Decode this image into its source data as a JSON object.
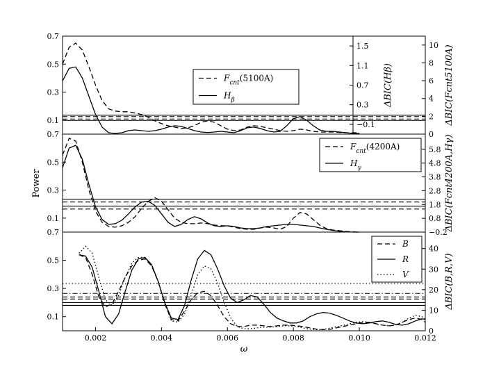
{
  "chart_data": {
    "type": "line",
    "xlabel": "ω",
    "ylabel": "Power",
    "xlim": [
      0.001,
      0.012
    ],
    "x_ticks": [
      "0.002",
      "0.004",
      "0.006",
      "0.008",
      "0.010",
      "0.012"
    ],
    "power_ticks": [
      "0.1",
      "0.3",
      "0.5",
      "0.7"
    ],
    "panels": [
      {
        "id": "top",
        "ylim": [
          0,
          0.7
        ],
        "legend": {
          "placement": "center",
          "entries": [
            {
              "label": "Fcnt(5100A)",
              "style": "dashed"
            },
            {
              "label": "Hβ",
              "style": "solid"
            }
          ]
        },
        "right_axes": [
          {
            "label": "ΔBIC(Hβ)",
            "ylim": [
              -0.3,
              1.7
            ],
            "ticks": [
              "−0.1",
              "0.3",
              "0.7",
              "1.1",
              "1.5"
            ]
          },
          {
            "label": "ΔBIC(Fcnt5100A)",
            "ylim": [
              0,
              11
            ],
            "ticks": [
              "0",
              "2",
              "4",
              "6",
              "8",
              "10"
            ]
          }
        ],
        "thresholds": [
          {
            "y": 0.135,
            "style": "solid"
          },
          {
            "y": 0.125,
            "style": "dashed"
          },
          {
            "y": 0.108,
            "style": "dashed"
          },
          {
            "y": 0.098,
            "style": "solid"
          }
        ],
        "series": [
          {
            "name": "Fcnt(5100A)",
            "style": "dashed",
            "x": [
              0.001,
              0.0012,
              0.0014,
              0.0016,
              0.0018,
              0.002,
              0.0022,
              0.0024,
              0.0026,
              0.0028,
              0.003,
              0.0032,
              0.0034,
              0.0036,
              0.0038,
              0.004,
              0.0042,
              0.0044,
              0.0046,
              0.0048,
              0.005,
              0.0052,
              0.0054,
              0.0056,
              0.0058,
              0.006,
              0.0062,
              0.0064,
              0.0066,
              0.0068,
              0.007,
              0.0072,
              0.0074,
              0.0076,
              0.0078,
              0.008,
              0.0082,
              0.0084,
              0.0086,
              0.0088,
              0.009,
              0.0092,
              0.0094,
              0.0096,
              0.0098,
              0.01
            ],
            "y": [
              0.5,
              0.62,
              0.65,
              0.6,
              0.48,
              0.35,
              0.24,
              0.18,
              0.165,
              0.16,
              0.16,
              0.15,
              0.14,
              0.12,
              0.095,
              0.075,
              0.06,
              0.05,
              0.04,
              0.045,
              0.06,
              0.085,
              0.095,
              0.085,
              0.06,
              0.035,
              0.025,
              0.03,
              0.05,
              0.06,
              0.055,
              0.045,
              0.035,
              0.025,
              0.02,
              0.025,
              0.035,
              0.03,
              0.02,
              0.015,
              0.015,
              0.015,
              0.012,
              0.01,
              0.01,
              0.01
            ]
          },
          {
            "name": "Hβ",
            "style": "solid",
            "x": [
              0.001,
              0.0012,
              0.0014,
              0.0016,
              0.0018,
              0.002,
              0.0022,
              0.0024,
              0.0026,
              0.0028,
              0.003,
              0.0032,
              0.0034,
              0.0036,
              0.0038,
              0.004,
              0.0042,
              0.0044,
              0.0046,
              0.0048,
              0.005,
              0.0052,
              0.0054,
              0.0056,
              0.0058,
              0.006,
              0.0062,
              0.0064,
              0.0066,
              0.0068,
              0.007,
              0.0072,
              0.0074,
              0.0076,
              0.0078,
              0.008,
              0.0082,
              0.0084,
              0.0086,
              0.0088,
              0.009,
              0.0092,
              0.0094,
              0.0096,
              0.0098,
              0.01
            ],
            "y": [
              0.38,
              0.47,
              0.48,
              0.4,
              0.27,
              0.14,
              0.05,
              0.01,
              0.005,
              0.01,
              0.025,
              0.03,
              0.025,
              0.02,
              0.025,
              0.035,
              0.05,
              0.06,
              0.055,
              0.04,
              0.025,
              0.015,
              0.012,
              0.015,
              0.02,
              0.015,
              0.01,
              0.025,
              0.045,
              0.05,
              0.04,
              0.025,
              0.015,
              0.02,
              0.06,
              0.11,
              0.125,
              0.1,
              0.06,
              0.03,
              0.02,
              0.02,
              0.015,
              0.01,
              0.005,
              0.005
            ]
          }
        ]
      },
      {
        "id": "middle",
        "ylim": [
          0,
          0.7
        ],
        "legend": {
          "placement": "top-right",
          "entries": [
            {
              "label": "Fcnt(4200A)",
              "style": "dashed"
            },
            {
              "label": "Hγ",
              "style": "solid"
            }
          ]
        },
        "right_axes": [
          {
            "label": "ΔBIC(Fcnt4200A,Hγ)",
            "ylim": [
              -0.2,
              6.9
            ],
            "ticks": [
              "−0.2",
              "0.8",
              "1.8",
              "2.8",
              "3.8",
              "4.8",
              "5.8"
            ]
          }
        ],
        "thresholds": [
          {
            "y": 0.235,
            "style": "solid"
          },
          {
            "y": 0.215,
            "style": "dashed"
          },
          {
            "y": 0.185,
            "style": "solid"
          },
          {
            "y": 0.165,
            "style": "dashed"
          }
        ],
        "series": [
          {
            "name": "Fcnt(4200A)",
            "style": "dashed",
            "x": [
              0.001,
              0.0012,
              0.0014,
              0.0016,
              0.0018,
              0.002,
              0.0022,
              0.0024,
              0.0026,
              0.0028,
              0.003,
              0.0032,
              0.0034,
              0.0036,
              0.0038,
              0.004,
              0.0042,
              0.0044,
              0.0046,
              0.0048,
              0.005,
              0.0052,
              0.0054,
              0.0056,
              0.0058,
              0.006,
              0.0062,
              0.0064,
              0.0066,
              0.0068,
              0.007,
              0.0072,
              0.0074,
              0.0076,
              0.0078,
              0.008,
              0.0082,
              0.0084,
              0.0086,
              0.0088,
              0.009,
              0.0092,
              0.0094,
              0.0096,
              0.0098,
              0.01
            ],
            "y": [
              0.55,
              0.67,
              0.65,
              0.5,
              0.3,
              0.15,
              0.07,
              0.04,
              0.035,
              0.045,
              0.07,
              0.11,
              0.17,
              0.22,
              0.245,
              0.22,
              0.16,
              0.1,
              0.07,
              0.06,
              0.06,
              0.065,
              0.06,
              0.05,
              0.045,
              0.045,
              0.035,
              0.025,
              0.02,
              0.02,
              0.03,
              0.035,
              0.03,
              0.02,
              0.04,
              0.1,
              0.14,
              0.13,
              0.09,
              0.05,
              0.025,
              0.015,
              0.01,
              0.005,
              0.002,
              0.0
            ]
          },
          {
            "name": "Hγ",
            "style": "solid",
            "x": [
              0.001,
              0.0012,
              0.0014,
              0.0016,
              0.0018,
              0.002,
              0.0022,
              0.0024,
              0.0026,
              0.0028,
              0.003,
              0.0032,
              0.0034,
              0.0036,
              0.0038,
              0.004,
              0.0042,
              0.0044,
              0.0046,
              0.0048,
              0.005,
              0.0052,
              0.0054,
              0.0056,
              0.0058,
              0.006,
              0.0062,
              0.0064,
              0.0066,
              0.0068,
              0.007,
              0.0072,
              0.0074,
              0.0076,
              0.0078,
              0.008,
              0.0082,
              0.0084,
              0.0086,
              0.0088,
              0.009,
              0.0092,
              0.0094,
              0.0096,
              0.0098,
              0.01
            ],
            "y": [
              0.46,
              0.6,
              0.62,
              0.52,
              0.34,
              0.18,
              0.09,
              0.055,
              0.06,
              0.085,
              0.13,
              0.18,
              0.215,
              0.22,
              0.19,
              0.13,
              0.07,
              0.04,
              0.055,
              0.09,
              0.11,
              0.095,
              0.065,
              0.045,
              0.04,
              0.045,
              0.04,
              0.03,
              0.025,
              0.025,
              0.03,
              0.04,
              0.045,
              0.05,
              0.055,
              0.055,
              0.05,
              0.045,
              0.04,
              0.03,
              0.02,
              0.012,
              0.006,
              0.002,
              0.0,
              0.0
            ]
          }
        ]
      },
      {
        "id": "bottom",
        "ylim": [
          0,
          0.7
        ],
        "legend": {
          "placement": "top-right",
          "entries": [
            {
              "label": "B",
              "style": "dashed"
            },
            {
              "label": "R",
              "style": "solid"
            },
            {
              "label": "V",
              "style": "dotted"
            }
          ]
        },
        "right_axes": [
          {
            "label": "ΔBIC(B,R,V)",
            "ylim": [
              0,
              48
            ],
            "ticks": [
              "0",
              "10",
              "20",
              "30",
              "40"
            ]
          }
        ],
        "thresholds": [
          {
            "y": 0.335,
            "style": "dotted"
          },
          {
            "y": 0.265,
            "style": "dashdot"
          },
          {
            "y": 0.24,
            "style": "dashed"
          },
          {
            "y": 0.225,
            "style": "dashed"
          },
          {
            "y": 0.2,
            "style": "solid"
          },
          {
            "y": 0.18,
            "style": "solid"
          }
        ],
        "series": [
          {
            "name": "B",
            "style": "dashed",
            "x": [
              0.0015,
              0.0017,
              0.0019,
              0.0021,
              0.0023,
              0.0025,
              0.0027,
              0.0029,
              0.0031,
              0.0033,
              0.0035,
              0.0037,
              0.0039,
              0.0041,
              0.0043,
              0.0045,
              0.0047,
              0.0049,
              0.0051,
              0.0053,
              0.0055,
              0.0057,
              0.0059,
              0.0061,
              0.0063,
              0.0065,
              0.0067,
              0.0069,
              0.0071,
              0.0073,
              0.0075,
              0.0077,
              0.0079,
              0.0081,
              0.0083,
              0.0085,
              0.0087,
              0.0089,
              0.0091,
              0.0093,
              0.0095,
              0.0097,
              0.0099,
              0.0101,
              0.0103,
              0.0105,
              0.0107,
              0.0109,
              0.0111,
              0.0113,
              0.0115,
              0.0117,
              0.0119,
              0.012
            ],
            "y": [
              0.54,
              0.52,
              0.4,
              0.24,
              0.17,
              0.19,
              0.28,
              0.38,
              0.46,
              0.5,
              0.51,
              0.46,
              0.35,
              0.19,
              0.08,
              0.07,
              0.14,
              0.22,
              0.27,
              0.28,
              0.25,
              0.18,
              0.1,
              0.05,
              0.03,
              0.03,
              0.04,
              0.04,
              0.035,
              0.03,
              0.035,
              0.04,
              0.04,
              0.035,
              0.03,
              0.02,
              0.012,
              0.008,
              0.01,
              0.02,
              0.03,
              0.04,
              0.05,
              0.06,
              0.06,
              0.05,
              0.04,
              0.035,
              0.04,
              0.06,
              0.08,
              0.09,
              0.08,
              0.06
            ]
          },
          {
            "name": "R",
            "style": "solid",
            "x": [
              0.0015,
              0.0017,
              0.0019,
              0.0021,
              0.0023,
              0.0025,
              0.0027,
              0.0029,
              0.0031,
              0.0033,
              0.0035,
              0.0037,
              0.0039,
              0.0041,
              0.0043,
              0.0045,
              0.0047,
              0.0049,
              0.0051,
              0.0053,
              0.0055,
              0.0057,
              0.0059,
              0.0061,
              0.0063,
              0.0065,
              0.0067,
              0.0069,
              0.0071,
              0.0073,
              0.0075,
              0.0077,
              0.0079,
              0.0081,
              0.0083,
              0.0085,
              0.0087,
              0.0089,
              0.0091,
              0.0093,
              0.0095,
              0.0097,
              0.0099,
              0.0101,
              0.0103,
              0.0105,
              0.0107,
              0.0109,
              0.0111,
              0.0113,
              0.0115,
              0.0117,
              0.0119,
              0.012
            ],
            "y": [
              0.54,
              0.53,
              0.45,
              0.28,
              0.1,
              0.05,
              0.12,
              0.28,
              0.43,
              0.51,
              0.52,
              0.47,
              0.35,
              0.2,
              0.09,
              0.08,
              0.18,
              0.36,
              0.51,
              0.57,
              0.54,
              0.44,
              0.32,
              0.23,
              0.2,
              0.22,
              0.25,
              0.24,
              0.19,
              0.13,
              0.09,
              0.07,
              0.055,
              0.055,
              0.07,
              0.1,
              0.12,
              0.13,
              0.125,
              0.11,
              0.09,
              0.07,
              0.055,
              0.05,
              0.055,
              0.065,
              0.07,
              0.06,
              0.045,
              0.04,
              0.05,
              0.07,
              0.085,
              0.08
            ]
          },
          {
            "name": "V",
            "style": "dotted",
            "x": [
              0.0015,
              0.0017,
              0.0019,
              0.0021,
              0.0023,
              0.0025,
              0.0027,
              0.0029,
              0.0031,
              0.0033,
              0.0035,
              0.0037,
              0.0039,
              0.0041,
              0.0043,
              0.0045,
              0.0047,
              0.0049,
              0.0051,
              0.0053,
              0.0055,
              0.0057,
              0.0059,
              0.0061,
              0.0063,
              0.0065,
              0.0067,
              0.0069,
              0.0071,
              0.0073,
              0.0075,
              0.0077,
              0.0079,
              0.0081,
              0.0083,
              0.0085,
              0.0087,
              0.0089,
              0.0091,
              0.0093,
              0.0095,
              0.0097,
              0.0099,
              0.0101,
              0.0103,
              0.0105,
              0.0107,
              0.0109,
              0.0111,
              0.0113,
              0.0115,
              0.0117,
              0.0119,
              0.012
            ],
            "y": [
              0.55,
              0.6,
              0.55,
              0.38,
              0.22,
              0.18,
              0.25,
              0.38,
              0.48,
              0.52,
              0.52,
              0.47,
              0.35,
              0.2,
              0.07,
              0.06,
              0.12,
              0.25,
              0.4,
              0.46,
              0.44,
              0.34,
              0.2,
              0.09,
              0.03,
              0.015,
              0.015,
              0.02,
              0.025,
              0.025,
              0.03,
              0.035,
              0.035,
              0.03,
              0.02,
              0.012,
              0.008,
              0.01,
              0.018,
              0.028,
              0.038,
              0.05,
              0.06,
              0.065,
              0.06,
              0.05,
              0.04,
              0.035,
              0.04,
              0.06,
              0.09,
              0.11,
              0.1,
              0.08
            ]
          }
        ]
      }
    ]
  }
}
